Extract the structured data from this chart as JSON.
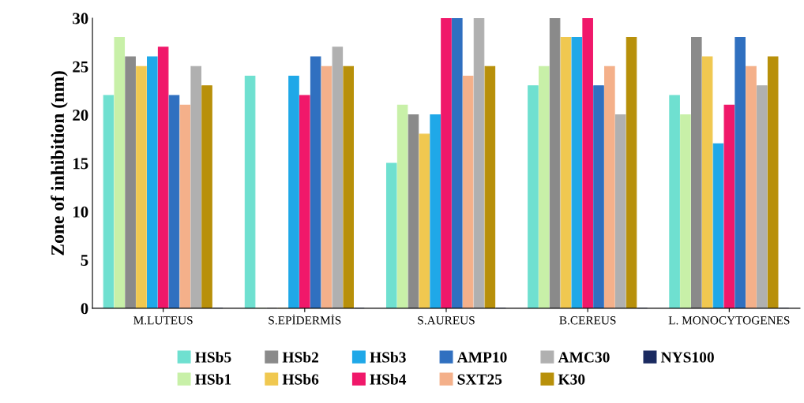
{
  "chart_data": {
    "type": "bar",
    "ylabel": "Zone of inhibition (nm)",
    "categories": [
      "M.LUTEUS",
      "S.EPİDERMİS",
      "S.AUREUS",
      "B.CEREUS",
      "L. MONOCYTOGENES"
    ],
    "series": [
      {
        "name": "HSb5",
        "color": "#6fe0d0",
        "values": [
          22,
          24,
          15,
          23,
          22
        ]
      },
      {
        "name": "HSb1",
        "color": "#c8f0a8",
        "values": [
          28,
          0,
          21,
          25,
          20
        ]
      },
      {
        "name": "HSb2",
        "color": "#8a8a8a",
        "values": [
          26,
          0,
          20,
          30,
          28
        ]
      },
      {
        "name": "HSb6",
        "color": "#f0c850",
        "values": [
          25,
          0,
          18,
          28,
          26
        ]
      },
      {
        "name": "HSb3",
        "color": "#1fa8e8",
        "values": [
          26,
          24,
          20,
          28,
          17
        ]
      },
      {
        "name": "HSb4",
        "color": "#f0186a",
        "values": [
          27,
          22,
          30,
          30,
          21
        ]
      },
      {
        "name": "AMP10",
        "color": "#3070c0",
        "values": [
          22,
          26,
          30,
          23,
          28
        ]
      },
      {
        "name": "SXT25",
        "color": "#f4b08a",
        "values": [
          21,
          25,
          24,
          25,
          25
        ]
      },
      {
        "name": "AMC30",
        "color": "#b0b0b0",
        "values": [
          25,
          27,
          30,
          20,
          23
        ]
      },
      {
        "name": "K30",
        "color": "#b8900a",
        "values": [
          23,
          25,
          25,
          28,
          26
        ]
      },
      {
        "name": "NYS100",
        "color": "#1a2a60",
        "values": [
          0,
          0,
          0,
          0,
          0
        ]
      }
    ],
    "ylim": [
      0,
      30
    ],
    "yticks": [
      0,
      5,
      10,
      15,
      20,
      25,
      30
    ],
    "grid": false,
    "legend": "bottom"
  }
}
